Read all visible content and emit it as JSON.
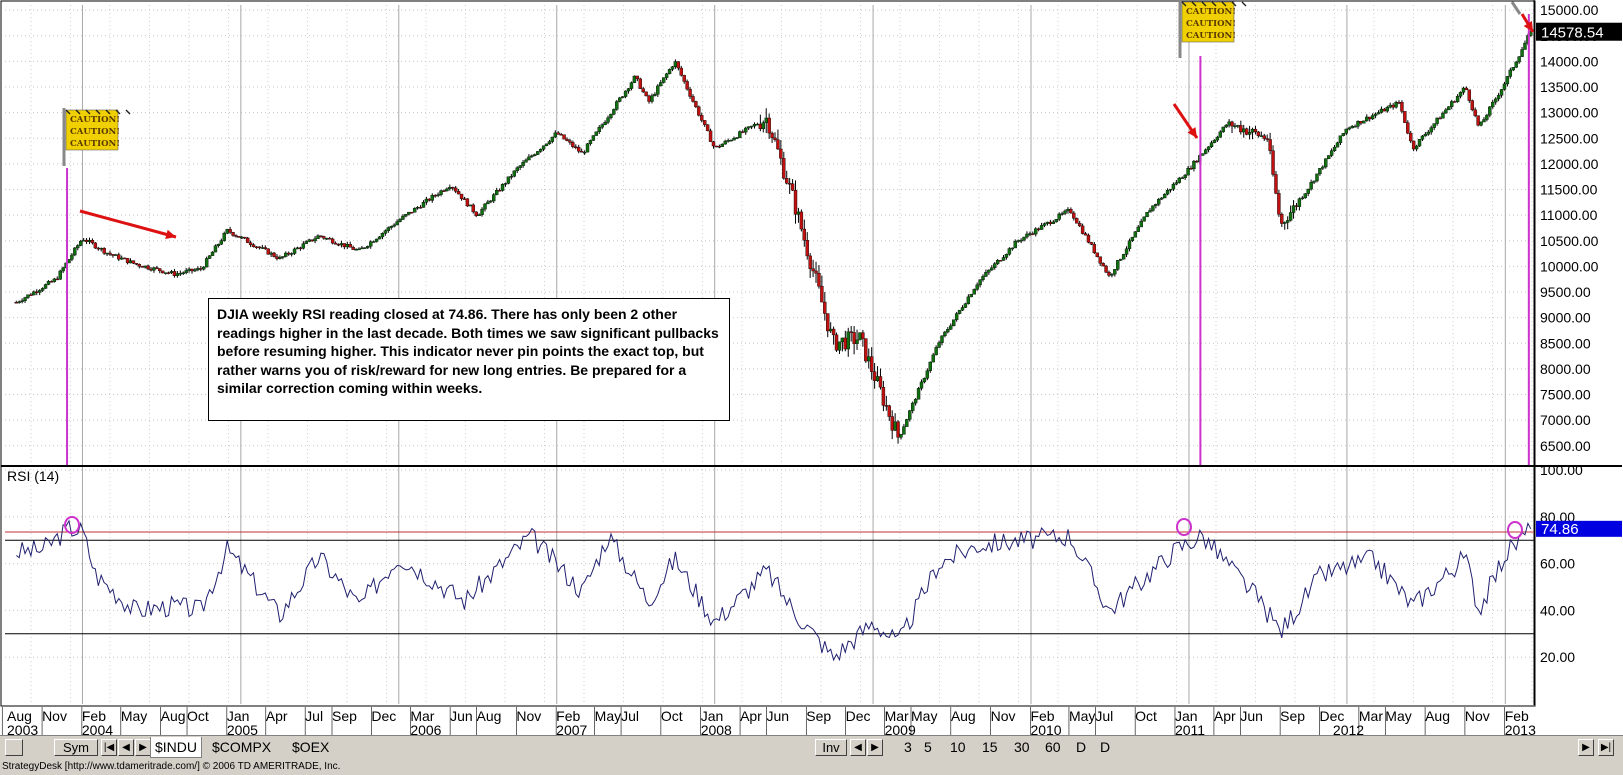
{
  "chart_data": [
    {
      "type": "candlestick",
      "title": "",
      "ylim": [
        6300,
        15100
      ],
      "ytick_labels": [
        "6500.00",
        "7000.00",
        "7500.00",
        "8000.00",
        "8500.00",
        "9000.00",
        "9500.00",
        "10000.00",
        "10500.00",
        "11000.00",
        "11500.00",
        "12000.00",
        "12500.00",
        "13000.00",
        "13500.00",
        "14000.00",
        "14500.00",
        "15000.00"
      ],
      "ytick_label_top_partial": "15000.00",
      "last_price_label": "14578.54",
      "weekly_close_approx": [
        {
          "date": "2003-08",
          "value": 9300
        },
        {
          "date": "2003-11",
          "value": 9750
        },
        {
          "date": "2004-01",
          "value": 10550
        },
        {
          "date": "2004-03",
          "value": 10250
        },
        {
          "date": "2004-05",
          "value": 10050
        },
        {
          "date": "2004-08",
          "value": 9850
        },
        {
          "date": "2004-10",
          "value": 9950
        },
        {
          "date": "2004-12",
          "value": 10700
        },
        {
          "date": "2005-04",
          "value": 10150
        },
        {
          "date": "2005-07",
          "value": 10600
        },
        {
          "date": "2005-10",
          "value": 10300
        },
        {
          "date": "2006-01",
          "value": 10900
        },
        {
          "date": "2006-05",
          "value": 11600
        },
        {
          "date": "2006-07",
          "value": 11000
        },
        {
          "date": "2006-10",
          "value": 11900
        },
        {
          "date": "2007-01",
          "value": 12600
        },
        {
          "date": "2007-03",
          "value": 12200
        },
        {
          "date": "2007-07",
          "value": 13700
        },
        {
          "date": "2007-08",
          "value": 13200
        },
        {
          "date": "2007-10",
          "value": 14000
        },
        {
          "date": "2008-01",
          "value": 12300
        },
        {
          "date": "2008-05",
          "value": 12900
        },
        {
          "date": "2008-07",
          "value": 11300
        },
        {
          "date": "2008-10",
          "value": 8500
        },
        {
          "date": "2008-12",
          "value": 8600
        },
        {
          "date": "2009-03",
          "value": 6650
        },
        {
          "date": "2009-06",
          "value": 8500
        },
        {
          "date": "2009-09",
          "value": 9700
        },
        {
          "date": "2009-12",
          "value": 10500
        },
        {
          "date": "2010-04",
          "value": 11100
        },
        {
          "date": "2010-07",
          "value": 9800
        },
        {
          "date": "2010-10",
          "value": 11100
        },
        {
          "date": "2011-01",
          "value": 11900
        },
        {
          "date": "2011-04",
          "value": 12800
        },
        {
          "date": "2011-07",
          "value": 12500
        },
        {
          "date": "2011-08",
          "value": 10800
        },
        {
          "date": "2011-10",
          "value": 11500
        },
        {
          "date": "2012-01",
          "value": 12700
        },
        {
          "date": "2012-05",
          "value": 13200
        },
        {
          "date": "2012-06",
          "value": 12300
        },
        {
          "date": "2012-10",
          "value": 13500
        },
        {
          "date": "2012-11",
          "value": 12700
        },
        {
          "date": "2013-01",
          "value": 13600
        },
        {
          "date": "2013-03",
          "value": 14578.54
        }
      ],
      "annotations": [
        {
          "text": "DJIA weekly RSI reading closed at 74.86.   There has only been 2 other readings higher in the last decade.   Both times we saw significant pullbacks before resuming higher. This indicator never pin points the exact top, but rather warns you of risk/reward for new long entries.  Be prepared for a similar correction coming within weeks."
        }
      ],
      "caution_flag_text": "CAUTION!"
    },
    {
      "type": "line",
      "title": "RSI (14)",
      "ylim": [
        0,
        100
      ],
      "ytick_labels": [
        "20.00",
        "40.00",
        "60.00",
        "80.00",
        "100.00"
      ],
      "reference_lines": [
        30,
        70,
        73.5
      ],
      "last_value_label": "74.86",
      "rsi_weekly_approx": [
        {
          "date": "2003-08",
          "value": 65
        },
        {
          "date": "2003-10",
          "value": 66
        },
        {
          "date": "2003-12",
          "value": 75
        },
        {
          "date": "2004-01",
          "value": 74
        },
        {
          "date": "2004-02",
          "value": 55
        },
        {
          "date": "2004-05",
          "value": 40
        },
        {
          "date": "2004-08",
          "value": 42
        },
        {
          "date": "2004-10",
          "value": 40
        },
        {
          "date": "2004-12",
          "value": 66
        },
        {
          "date": "2005-04",
          "value": 38
        },
        {
          "date": "2005-07",
          "value": 63
        },
        {
          "date": "2005-10",
          "value": 42
        },
        {
          "date": "2006-01",
          "value": 63
        },
        {
          "date": "2006-06",
          "value": 44
        },
        {
          "date": "2006-11",
          "value": 72
        },
        {
          "date": "2007-03",
          "value": 48
        },
        {
          "date": "2007-05",
          "value": 72
        },
        {
          "date": "2007-08",
          "value": 44
        },
        {
          "date": "2007-10",
          "value": 62
        },
        {
          "date": "2008-01",
          "value": 35
        },
        {
          "date": "2008-05",
          "value": 57
        },
        {
          "date": "2008-07",
          "value": 40
        },
        {
          "date": "2008-10",
          "value": 20
        },
        {
          "date": "2009-01",
          "value": 35
        },
        {
          "date": "2009-03",
          "value": 26
        },
        {
          "date": "2009-06",
          "value": 60
        },
        {
          "date": "2009-09",
          "value": 68
        },
        {
          "date": "2010-04",
          "value": 72
        },
        {
          "date": "2010-07",
          "value": 40
        },
        {
          "date": "2010-12",
          "value": 66
        },
        {
          "date": "2011-02",
          "value": 72
        },
        {
          "date": "2011-06",
          "value": 47
        },
        {
          "date": "2011-08",
          "value": 31
        },
        {
          "date": "2011-11",
          "value": 55
        },
        {
          "date": "2012-03",
          "value": 62
        },
        {
          "date": "2012-06",
          "value": 42
        },
        {
          "date": "2012-10",
          "value": 63
        },
        {
          "date": "2012-11",
          "value": 40
        },
        {
          "date": "2013-01",
          "value": 64
        },
        {
          "date": "2013-03",
          "value": 74.86
        }
      ]
    }
  ],
  "x_axis": {
    "month_labels": [
      "Aug",
      "Nov",
      "Feb",
      "May",
      "Aug",
      "Oct",
      "Jan",
      "Apr",
      "Jul",
      "Sep",
      "Dec",
      "Mar",
      "Jun",
      "Aug",
      "Nov",
      "Feb",
      "May",
      "Jul",
      "Oct",
      "Jan",
      "Apr",
      "Jun",
      "Sep",
      "Dec",
      "Mar",
      "May",
      "Aug",
      "Nov",
      "Feb",
      "May",
      "Jul",
      "Oct",
      "Jan",
      "Apr",
      "Jun",
      "Sep",
      "Dec",
      "Mar",
      "May",
      "Aug",
      "Nov",
      "Feb"
    ],
    "year_labels": [
      "2003",
      "2004",
      "2005",
      "2006",
      "2007",
      "2008",
      "2009",
      "2010",
      "2011",
      "2012",
      "2013"
    ]
  },
  "toolbar": {
    "sym_label": "Sym",
    "tabs": [
      "$INDU",
      "$COMPX",
      "$OEX"
    ],
    "inv_label": "Inv",
    "periods": [
      "3",
      "5",
      "10",
      "15",
      "30",
      "60",
      "D",
      "D"
    ]
  },
  "status_bar": "StrategyDesk [http://www.tdameritrade.com/] © 2006 TD AMERITRADE, Inc.",
  "colors": {
    "up": "#107010",
    "down": "#c01010",
    "rsi_line": "#202070",
    "marker_line": "#cc33cc",
    "arrow": "#dd1111",
    "label_bg": "#0000e0",
    "flag": "#f0d000"
  }
}
